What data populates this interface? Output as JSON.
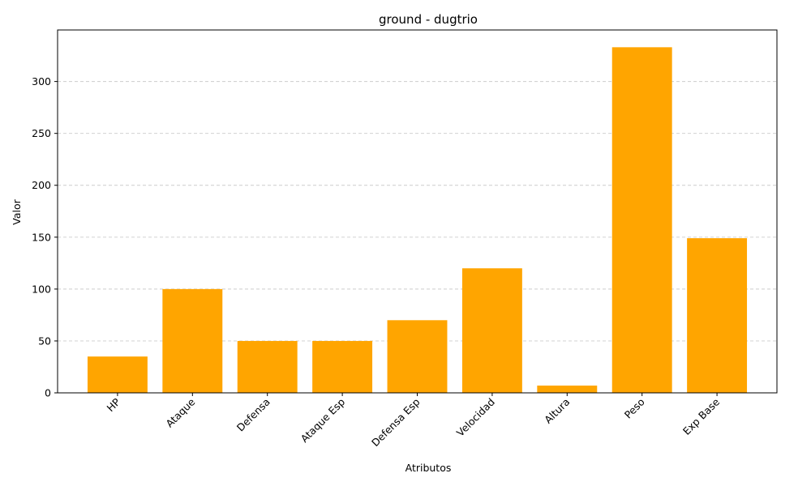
{
  "chart_data": {
    "type": "bar",
    "title": "ground - dugtrio",
    "xlabel": "Atributos",
    "ylabel": "Valor",
    "categories": [
      "HP",
      "Ataque",
      "Defensa",
      "Ataque Esp",
      "Defensa Esp",
      "Velocidad",
      "Altura",
      "Peso",
      "Exp Base"
    ],
    "values": [
      35,
      100,
      50,
      50,
      70,
      120,
      7,
      333,
      149
    ],
    "ylim": [
      0,
      349.65
    ],
    "yticks": [
      0,
      50,
      100,
      150,
      200,
      250,
      300
    ],
    "grid": "y-dashed",
    "bar_color": "#FFA500",
    "grid_color": "#cccccc"
  }
}
